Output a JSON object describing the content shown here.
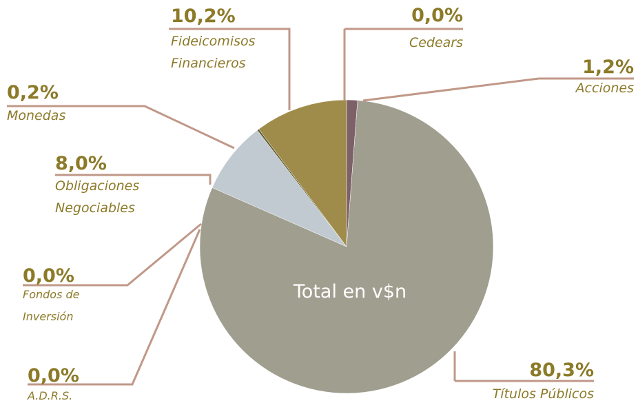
{
  "chart_data": {
    "type": "pie",
    "center_label": "Total en v$n",
    "categories": [
      "Cedears",
      "Acciones",
      "Títulos Públicos",
      "A.D.R.S.",
      "Fondos de Inversión",
      "Obligaciones Negociables",
      "Monedas",
      "Fideicomisos Financieros"
    ],
    "values": [
      0.0,
      1.2,
      80.3,
      0.0,
      0.0,
      8.0,
      0.2,
      10.2
    ],
    "value_labels": [
      "0,0%",
      "1,2%",
      "80,3%",
      "0,0%",
      "0,0%",
      "8,0%",
      "0,2%",
      "10,2%"
    ],
    "colors": [
      "#cfc9b0",
      "#7d6068",
      "#a09e8f",
      "#8a8a7a",
      "#8a8a7a",
      "#c0cad0",
      "#5e5a30",
      "#a08c4a"
    ]
  }
}
